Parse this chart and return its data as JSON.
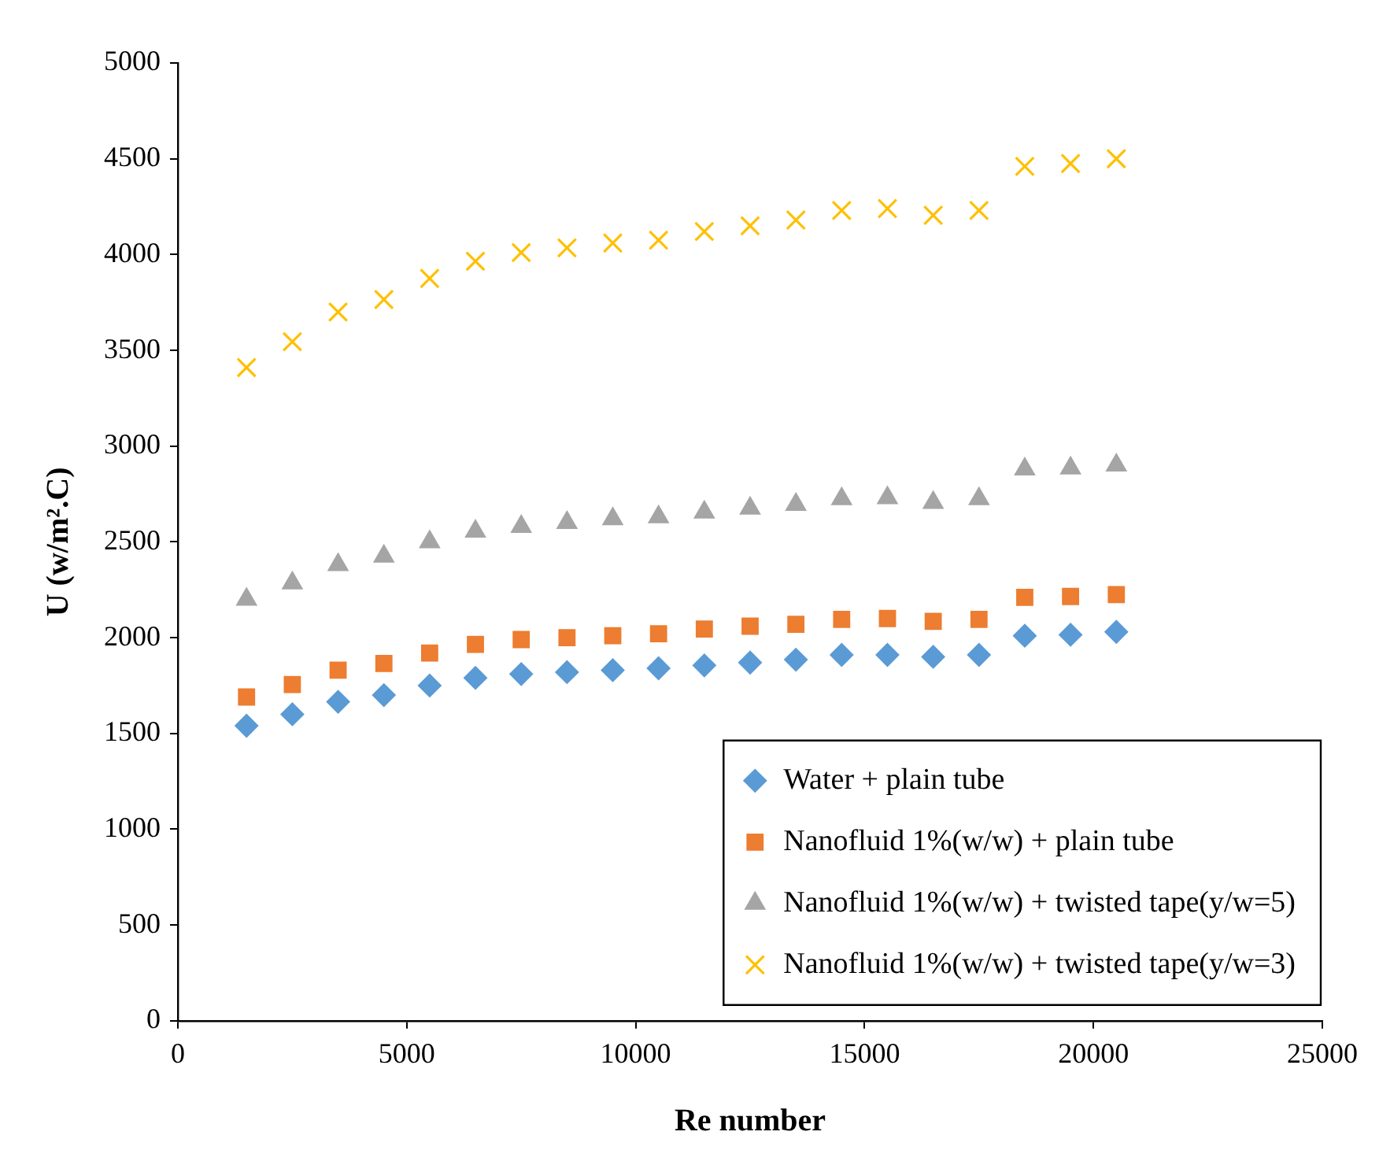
{
  "chart_data": {
    "type": "scatter",
    "xlabel": "Re number",
    "ylabel": "U (w/m².C)",
    "x": [
      1500,
      2500,
      3500,
      4500,
      5500,
      6500,
      7500,
      8500,
      9500,
      10500,
      11500,
      12500,
      13500,
      14500,
      15500,
      16500,
      17500,
      18500,
      19500,
      20500
    ],
    "series": [
      {
        "name": "Water + plain tube",
        "color": "#5b9bd5",
        "marker": "diamond",
        "values": [
          1540,
          1600,
          1665,
          1700,
          1750,
          1790,
          1810,
          1820,
          1830,
          1840,
          1855,
          1870,
          1885,
          1910,
          1910,
          1900,
          1910,
          2010,
          2015,
          2030
        ]
      },
      {
        "name": "Nanofluid 1%(w/w) + plain tube",
        "color": "#ed7d31",
        "marker": "square",
        "values": [
          1690,
          1755,
          1830,
          1865,
          1920,
          1965,
          1990,
          2000,
          2010,
          2020,
          2045,
          2060,
          2070,
          2095,
          2100,
          2085,
          2095,
          2210,
          2215,
          2225
        ]
      },
      {
        "name": "Nanofluid 1%(w/w) + twisted tape(y/w=5)",
        "color": "#a5a5a5",
        "marker": "triangle",
        "values": [
          2200,
          2285,
          2380,
          2425,
          2500,
          2555,
          2580,
          2600,
          2620,
          2630,
          2655,
          2675,
          2695,
          2725,
          2730,
          2705,
          2725,
          2880,
          2885,
          2900
        ]
      },
      {
        "name": "Nanofluid 1%(w/w) + twisted tape(y/w=3)",
        "color": "#ffc000",
        "marker": "cross",
        "values": [
          3410,
          3545,
          3700,
          3765,
          3875,
          3965,
          4010,
          4035,
          4060,
          4075,
          4120,
          4150,
          4180,
          4230,
          4240,
          4205,
          4230,
          4460,
          4475,
          4500
        ]
      }
    ],
    "xlim": [
      0,
      25000
    ],
    "xticks": [
      0,
      5000,
      10000,
      15000,
      20000,
      25000
    ],
    "ylim": [
      0,
      5000
    ],
    "yticks": [
      0,
      500,
      1000,
      1500,
      2000,
      2500,
      3000,
      3500,
      4000,
      4500,
      5000
    ],
    "grid": false,
    "legend": "bottom right"
  }
}
